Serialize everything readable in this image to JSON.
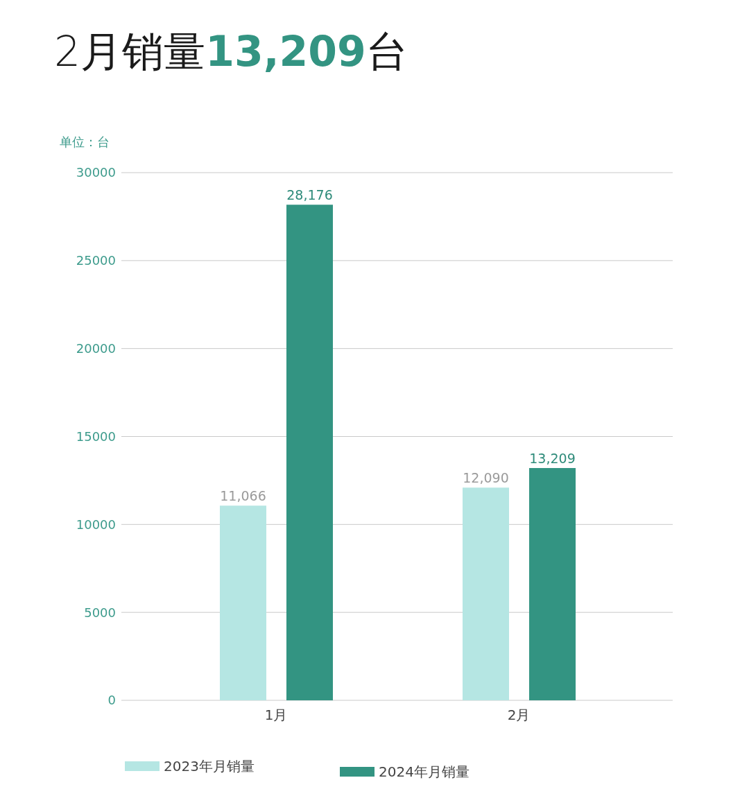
{
  "chart_data": {
    "type": "bar",
    "title": "2月销量13,209台",
    "ylabel": "单位：台",
    "categories": [
      "1月",
      "2月"
    ],
    "series": [
      {
        "name": "2023年月销量",
        "color": "#b5e6e3",
        "values": [
          11066,
          12090
        ],
        "value_labels": [
          "11,066",
          "12,090"
        ]
      },
      {
        "name": "2024年月销量",
        "color": "#339482",
        "values": [
          28176,
          13209
        ],
        "value_labels": [
          "28,176",
          "13,209"
        ]
      }
    ],
    "ylim": [
      0,
      30000
    ],
    "yticks": [
      0,
      5000,
      10000,
      15000,
      20000,
      25000,
      30000
    ],
    "grid": "y",
    "legend": "bottom"
  }
}
